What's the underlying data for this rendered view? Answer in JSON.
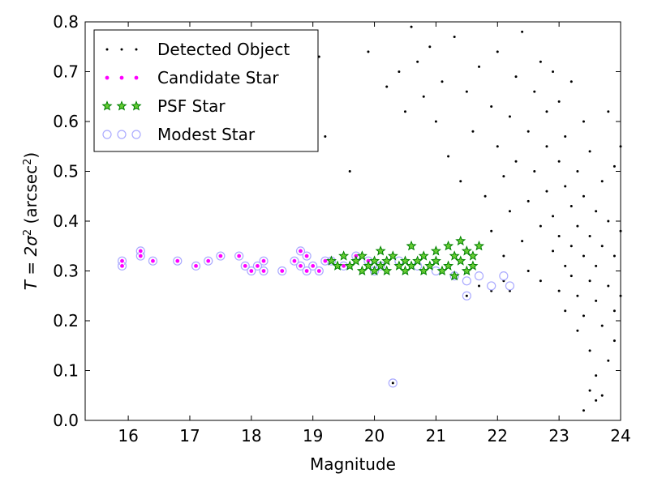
{
  "chart_data": {
    "type": "scatter",
    "xlabel": "Magnitude",
    "ylabel_prefix": "T = 2σ",
    "ylabel_sup1": "2",
    "ylabel_unit": " (arcsec",
    "ylabel_sup2": "2",
    "ylabel_close": ")",
    "xlim": [
      15.3,
      24
    ],
    "ylim": [
      0.0,
      0.8
    ],
    "xticks": [
      16,
      17,
      18,
      19,
      20,
      21,
      22,
      23,
      24
    ],
    "yticks": [
      0.0,
      0.1,
      0.2,
      0.3,
      0.4,
      0.5,
      0.6,
      0.7,
      0.8
    ],
    "xtick_labels": [
      "16",
      "17",
      "18",
      "19",
      "20",
      "21",
      "22",
      "23",
      "24"
    ],
    "ytick_labels": [
      "0.0",
      "0.1",
      "0.2",
      "0.3",
      "0.4",
      "0.5",
      "0.6",
      "0.7",
      "0.8"
    ],
    "grid": false,
    "legend_position": "top-left",
    "colors": {
      "detected": "#000000",
      "candidate": "#ff00ff",
      "psf": "#008000",
      "modest": "#aaaaff"
    },
    "series": [
      {
        "name": "Detected Object",
        "marker": "dot",
        "points": [
          [
            18.6,
            0.57
          ],
          [
            19.1,
            0.73
          ],
          [
            19.2,
            0.57
          ],
          [
            19.6,
            0.5
          ],
          [
            19.9,
            0.74
          ],
          [
            20.2,
            0.67
          ],
          [
            20.4,
            0.7
          ],
          [
            20.5,
            0.62
          ],
          [
            20.6,
            0.79
          ],
          [
            20.7,
            0.72
          ],
          [
            20.8,
            0.65
          ],
          [
            20.9,
            0.75
          ],
          [
            21.0,
            0.6
          ],
          [
            21.1,
            0.68
          ],
          [
            21.2,
            0.53
          ],
          [
            21.3,
            0.77
          ],
          [
            21.4,
            0.48
          ],
          [
            21.5,
            0.66
          ],
          [
            21.6,
            0.58
          ],
          [
            21.7,
            0.71
          ],
          [
            21.8,
            0.45
          ],
          [
            21.9,
            0.63
          ],
          [
            21.9,
            0.38
          ],
          [
            22.0,
            0.55
          ],
          [
            22.0,
            0.74
          ],
          [
            22.1,
            0.49
          ],
          [
            22.1,
            0.33
          ],
          [
            22.2,
            0.61
          ],
          [
            22.2,
            0.42
          ],
          [
            22.3,
            0.69
          ],
          [
            22.3,
            0.52
          ],
          [
            22.4,
            0.36
          ],
          [
            22.4,
            0.78
          ],
          [
            22.5,
            0.58
          ],
          [
            22.5,
            0.44
          ],
          [
            22.5,
            0.3
          ],
          [
            22.6,
            0.66
          ],
          [
            22.6,
            0.5
          ],
          [
            22.7,
            0.39
          ],
          [
            22.7,
            0.72
          ],
          [
            22.7,
            0.28
          ],
          [
            22.8,
            0.55
          ],
          [
            22.8,
            0.46
          ],
          [
            22.8,
            0.62
          ],
          [
            22.9,
            0.34
          ],
          [
            22.9,
            0.7
          ],
          [
            22.9,
            0.41
          ],
          [
            23.0,
            0.52
          ],
          [
            23.0,
            0.26
          ],
          [
            23.0,
            0.64
          ],
          [
            23.0,
            0.37
          ],
          [
            23.1,
            0.47
          ],
          [
            23.1,
            0.31
          ],
          [
            23.1,
            0.57
          ],
          [
            23.1,
            0.22
          ],
          [
            23.2,
            0.43
          ],
          [
            23.2,
            0.35
          ],
          [
            23.2,
            0.68
          ],
          [
            23.2,
            0.29
          ],
          [
            23.3,
            0.5
          ],
          [
            23.3,
            0.25
          ],
          [
            23.3,
            0.39
          ],
          [
            23.3,
            0.18
          ],
          [
            23.4,
            0.45
          ],
          [
            23.4,
            0.33
          ],
          [
            23.4,
            0.6
          ],
          [
            23.4,
            0.21
          ],
          [
            23.5,
            0.37
          ],
          [
            23.5,
            0.28
          ],
          [
            23.5,
            0.14
          ],
          [
            23.5,
            0.54
          ],
          [
            23.6,
            0.31
          ],
          [
            23.6,
            0.42
          ],
          [
            23.6,
            0.24
          ],
          [
            23.6,
            0.09
          ],
          [
            23.7,
            0.35
          ],
          [
            23.7,
            0.19
          ],
          [
            23.7,
            0.48
          ],
          [
            23.7,
            0.05
          ],
          [
            23.8,
            0.27
          ],
          [
            23.8,
            0.4
          ],
          [
            23.8,
            0.12
          ],
          [
            23.8,
            0.62
          ],
          [
            23.9,
            0.22
          ],
          [
            23.9,
            0.33
          ],
          [
            23.9,
            0.16
          ],
          [
            23.9,
            0.51
          ],
          [
            24.0,
            0.25
          ],
          [
            24.0,
            0.38
          ],
          [
            24.0,
            0.55
          ],
          [
            23.6,
            0.04
          ],
          [
            23.5,
            0.06
          ],
          [
            23.4,
            0.02
          ],
          [
            21.5,
            0.25
          ],
          [
            21.7,
            0.27
          ],
          [
            21.9,
            0.26
          ],
          [
            22.1,
            0.28
          ],
          [
            22.2,
            0.26
          ],
          [
            20.3,
            0.075
          ]
        ]
      },
      {
        "name": "Candidate Star",
        "marker": "small-circle",
        "points": [
          [
            15.9,
            0.32
          ],
          [
            15.9,
            0.31
          ],
          [
            16.2,
            0.33
          ],
          [
            16.2,
            0.34
          ],
          [
            16.4,
            0.32
          ],
          [
            16.8,
            0.32
          ],
          [
            17.1,
            0.31
          ],
          [
            17.3,
            0.32
          ],
          [
            17.5,
            0.33
          ],
          [
            17.8,
            0.33
          ],
          [
            17.9,
            0.31
          ],
          [
            18.0,
            0.3
          ],
          [
            18.1,
            0.31
          ],
          [
            18.2,
            0.32
          ],
          [
            18.2,
            0.3
          ],
          [
            18.5,
            0.3
          ],
          [
            18.7,
            0.32
          ],
          [
            18.8,
            0.34
          ],
          [
            18.8,
            0.31
          ],
          [
            18.9,
            0.33
          ],
          [
            18.9,
            0.3
          ],
          [
            19.0,
            0.31
          ],
          [
            19.1,
            0.3
          ],
          [
            19.2,
            0.32
          ],
          [
            19.3,
            0.32
          ],
          [
            19.5,
            0.31
          ],
          [
            19.7,
            0.33
          ],
          [
            19.9,
            0.32
          ],
          [
            20.0,
            0.3
          ],
          [
            20.1,
            0.31
          ]
        ]
      },
      {
        "name": "PSF Star",
        "marker": "star",
        "points": [
          [
            19.3,
            0.32
          ],
          [
            19.4,
            0.31
          ],
          [
            19.5,
            0.33
          ],
          [
            19.6,
            0.31
          ],
          [
            19.7,
            0.32
          ],
          [
            19.8,
            0.3
          ],
          [
            19.8,
            0.33
          ],
          [
            19.9,
            0.31
          ],
          [
            20.0,
            0.32
          ],
          [
            20.0,
            0.3
          ],
          [
            20.1,
            0.34
          ],
          [
            20.1,
            0.31
          ],
          [
            20.2,
            0.32
          ],
          [
            20.2,
            0.3
          ],
          [
            20.3,
            0.33
          ],
          [
            20.4,
            0.31
          ],
          [
            20.5,
            0.32
          ],
          [
            20.5,
            0.3
          ],
          [
            20.6,
            0.35
          ],
          [
            20.6,
            0.31
          ],
          [
            20.7,
            0.32
          ],
          [
            20.8,
            0.3
          ],
          [
            20.8,
            0.33
          ],
          [
            20.9,
            0.31
          ],
          [
            21.0,
            0.34
          ],
          [
            21.0,
            0.32
          ],
          [
            21.1,
            0.3
          ],
          [
            21.2,
            0.35
          ],
          [
            21.2,
            0.31
          ],
          [
            21.3,
            0.33
          ],
          [
            21.3,
            0.29
          ],
          [
            21.4,
            0.36
          ],
          [
            21.4,
            0.32
          ],
          [
            21.5,
            0.3
          ],
          [
            21.5,
            0.34
          ],
          [
            21.6,
            0.33
          ],
          [
            21.6,
            0.31
          ],
          [
            21.7,
            0.35
          ]
        ]
      },
      {
        "name": "Modest Star",
        "marker": "open-circle",
        "points": [
          [
            15.9,
            0.32
          ],
          [
            15.9,
            0.31
          ],
          [
            16.2,
            0.33
          ],
          [
            16.2,
            0.34
          ],
          [
            16.4,
            0.32
          ],
          [
            16.8,
            0.32
          ],
          [
            17.1,
            0.31
          ],
          [
            17.3,
            0.32
          ],
          [
            17.5,
            0.33
          ],
          [
            17.8,
            0.33
          ],
          [
            17.9,
            0.31
          ],
          [
            18.0,
            0.3
          ],
          [
            18.1,
            0.31
          ],
          [
            18.2,
            0.32
          ],
          [
            18.2,
            0.3
          ],
          [
            18.5,
            0.3
          ],
          [
            18.7,
            0.32
          ],
          [
            18.8,
            0.34
          ],
          [
            18.8,
            0.31
          ],
          [
            18.9,
            0.33
          ],
          [
            18.9,
            0.3
          ],
          [
            19.0,
            0.31
          ],
          [
            19.1,
            0.3
          ],
          [
            19.2,
            0.32
          ],
          [
            19.3,
            0.32
          ],
          [
            19.5,
            0.31
          ],
          [
            19.7,
            0.33
          ],
          [
            19.9,
            0.32
          ],
          [
            20.0,
            0.3
          ],
          [
            20.1,
            0.31
          ],
          [
            20.4,
            0.32
          ],
          [
            20.7,
            0.31
          ],
          [
            21.0,
            0.3
          ],
          [
            21.3,
            0.29
          ],
          [
            21.5,
            0.28
          ],
          [
            21.7,
            0.29
          ],
          [
            21.9,
            0.27
          ],
          [
            22.1,
            0.29
          ],
          [
            22.2,
            0.27
          ],
          [
            21.5,
            0.25
          ],
          [
            20.3,
            0.075
          ]
        ]
      }
    ]
  }
}
